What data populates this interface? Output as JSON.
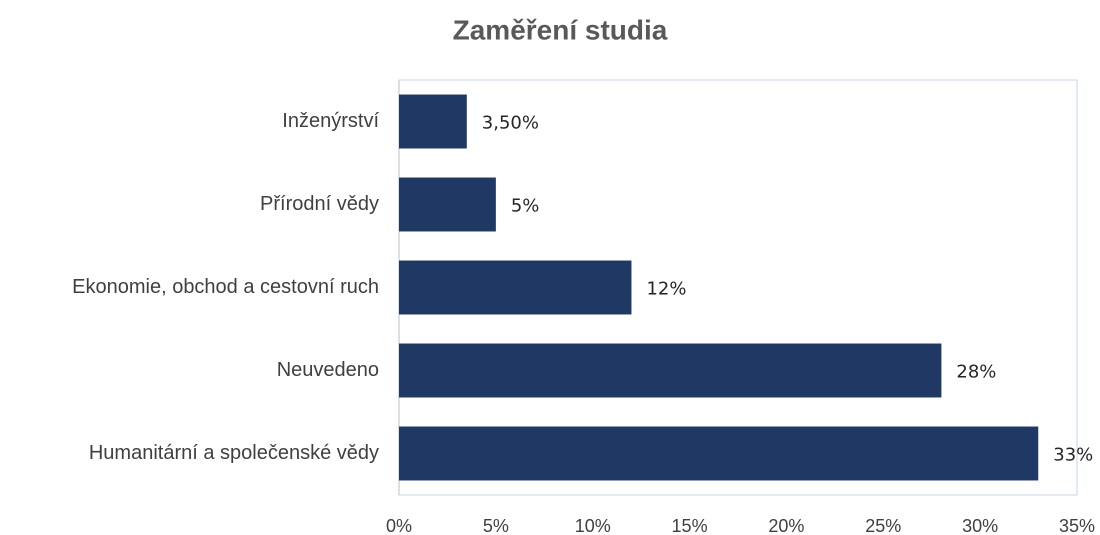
{
  "chart_data": {
    "type": "bar",
    "orientation": "horizontal",
    "title": "Zaměření studia",
    "categories": [
      "Inženýrství",
      "Přírodní vědy",
      "Ekonomie, obchod a cestovní ruch",
      "Neuvedeno",
      "Humanitární a společenské vědy"
    ],
    "values": [
      3.5,
      5,
      12,
      28,
      33
    ],
    "value_labels": [
      "3,50%",
      "5%",
      "12%",
      "28%",
      "33%"
    ],
    "color": "#203864",
    "xlim": [
      0,
      35
    ],
    "xticks": [
      {
        "value": 0,
        "label": "0%"
      },
      {
        "value": 5,
        "label": "5%"
      },
      {
        "value": 10,
        "label": "10%"
      },
      {
        "value": 15,
        "label": "15%"
      },
      {
        "value": 20,
        "label": "20%"
      },
      {
        "value": 25,
        "label": "25%"
      },
      {
        "value": 30,
        "label": "30%"
      },
      {
        "value": 35,
        "label": "35%"
      }
    ],
    "grid": false
  }
}
